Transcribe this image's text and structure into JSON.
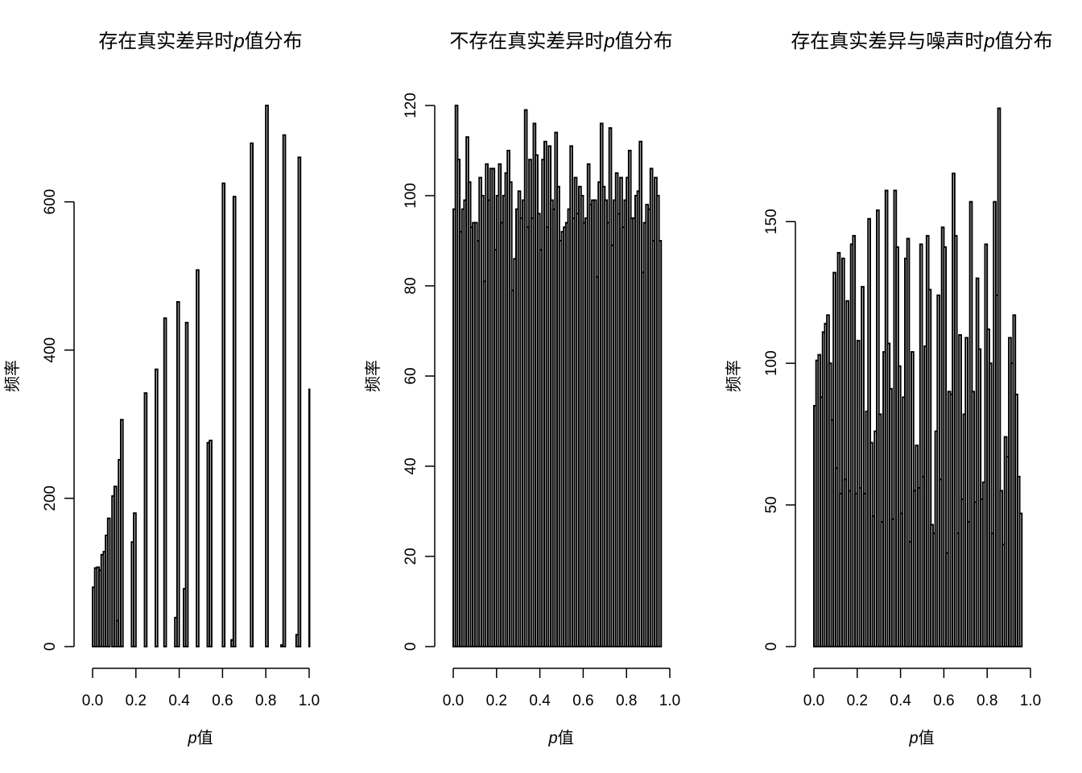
{
  "chart_data": [
    {
      "type": "bar",
      "title_prefix": "存在真实差异时",
      "title_suffix": "值分布",
      "xlabel_italic": "p",
      "xlabel_suffix": "值",
      "ylabel": "频率",
      "x_ticks": [
        0.0,
        0.2,
        0.4,
        0.6,
        0.8,
        1.0
      ],
      "x_tick_labels": [
        "0.0",
        "0.2",
        "0.4",
        "0.6",
        "0.8",
        "1.0"
      ],
      "y_ticks": [
        0,
        200,
        400,
        600
      ],
      "y_tick_labels": [
        "0",
        "200",
        "400",
        "600"
      ],
      "xlim": [
        0,
        1
      ],
      "ylim": [
        0,
        730
      ],
      "bin_width": 0.01,
      "values": [
        80,
        106,
        107,
        103,
        124,
        128,
        150,
        173,
        0,
        203,
        216,
        35,
        252,
        306,
        0,
        0,
        0,
        0,
        141,
        180,
        0,
        0,
        0,
        0,
        342,
        0,
        0,
        0,
        0,
        374,
        0,
        0,
        0,
        443,
        0,
        0,
        0,
        0,
        39,
        465,
        0,
        0,
        78,
        437,
        0,
        0,
        0,
        0,
        508,
        0,
        0,
        0,
        0,
        275,
        278,
        0,
        0,
        0,
        0,
        0,
        625,
        0,
        0,
        0,
        9,
        607,
        0,
        0,
        0,
        0,
        0,
        0,
        0,
        679,
        0,
        0,
        0,
        0,
        0,
        0,
        730,
        0,
        0,
        0,
        0,
        0,
        0,
        2,
        690,
        0,
        0,
        0,
        0,
        0,
        16,
        660,
        0,
        0,
        0,
        0,
        347
      ],
      "grid": false,
      "legend": "none"
    },
    {
      "type": "bar",
      "title_prefix": "不存在真实差异时",
      "title_suffix": "值分布",
      "xlabel_italic": "p",
      "xlabel_suffix": "值",
      "ylabel": "频率",
      "x_ticks": [
        0.0,
        0.2,
        0.4,
        0.6,
        0.8,
        1.0
      ],
      "x_tick_labels": [
        "0.0",
        "0.2",
        "0.4",
        "0.6",
        "0.8",
        "1.0"
      ],
      "y_ticks": [
        0,
        20,
        40,
        60,
        80,
        100,
        120
      ],
      "y_tick_labels": [
        "0",
        "20",
        "40",
        "60",
        "80",
        "100",
        "120"
      ],
      "xlim": [
        0,
        1
      ],
      "ylim": [
        0,
        120
      ],
      "bin_width": 0.01,
      "values": [
        97,
        120,
        108,
        92,
        97,
        99,
        113,
        103,
        93,
        94,
        94,
        90,
        104,
        100,
        81,
        107,
        99,
        106,
        106,
        88,
        100,
        107,
        94,
        100,
        105,
        110,
        103,
        79,
        86,
        97,
        101,
        95,
        99,
        119,
        93,
        108,
        95,
        116,
        109,
        96,
        88,
        108,
        112,
        93,
        111,
        99,
        97,
        114,
        102,
        90,
        92,
        93,
        94,
        97,
        111,
        95,
        104,
        96,
        102,
        100,
        94,
        95,
        107,
        98,
        99,
        99,
        82,
        103,
        116,
        102,
        99,
        94,
        115,
        89,
        99,
        105,
        96,
        104,
        93,
        99,
        104,
        110,
        95,
        95,
        100,
        101,
        112,
        83,
        94,
        98,
        97,
        106,
        90,
        104,
        100,
        90
      ],
      "grid": false,
      "legend": "none"
    },
    {
      "type": "bar",
      "title_prefix": "存在真实差异与噪声时",
      "title_suffix": "值分布",
      "xlabel_italic": "p",
      "xlabel_suffix": "值",
      "ylabel": "频率",
      "x_ticks": [
        0.0,
        0.2,
        0.4,
        0.6,
        0.8,
        1.0
      ],
      "x_tick_labels": [
        "0.0",
        "0.2",
        "0.4",
        "0.6",
        "0.8",
        "1.0"
      ],
      "y_ticks": [
        0,
        50,
        100,
        150
      ],
      "y_tick_labels": [
        "0",
        "50",
        "100",
        "150"
      ],
      "xlim": [
        0,
        1
      ],
      "ylim": [
        0,
        191
      ],
      "bin_width": 0.01,
      "values": [
        85,
        101,
        103,
        88,
        111,
        114,
        117,
        100,
        80,
        132,
        63,
        139,
        54,
        137,
        59,
        122,
        55,
        142,
        145,
        54,
        108,
        56,
        127,
        54,
        83,
        151,
        72,
        46,
        76,
        154,
        82,
        44,
        104,
        161,
        107,
        91,
        45,
        161,
        141,
        99,
        47,
        88,
        137,
        144,
        37,
        104,
        55,
        71,
        56,
        142,
        60,
        106,
        145,
        126,
        43,
        40,
        76,
        124,
        59,
        148,
        141,
        33,
        90,
        89,
        167,
        145,
        40,
        110,
        52,
        82,
        109,
        44,
        157,
        90,
        51,
        130,
        105,
        52,
        58,
        142,
        112,
        100,
        40,
        157,
        124,
        190,
        55,
        36,
        74,
        67,
        109,
        100,
        117,
        89,
        60,
        47
      ],
      "grid": false,
      "legend": "none"
    }
  ]
}
